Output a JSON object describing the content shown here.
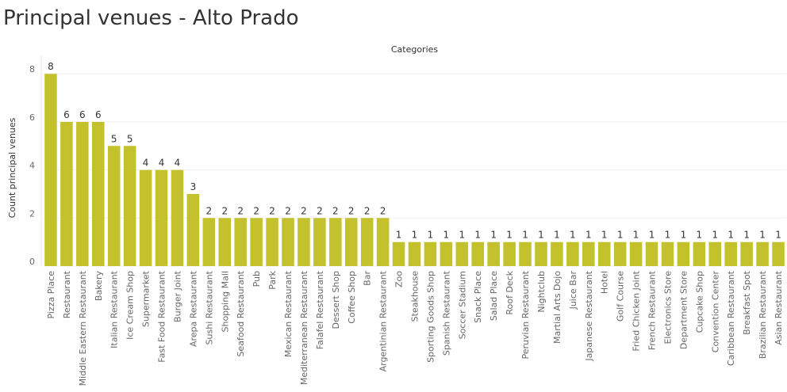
{
  "page": {
    "title": "Principal venues - Alto Prado"
  },
  "colors": {
    "bar": "#c4c22c",
    "grid": "#f0f0f0",
    "axis_text": "#666666"
  },
  "chart_data": {
    "type": "bar",
    "title": "Principal venues - Alto Prado",
    "header": "Categories",
    "xlabel": "",
    "ylabel": "Count principal venues",
    "ylim": [
      0,
      8.7
    ],
    "yticks": [
      0,
      2,
      4,
      6,
      8
    ],
    "grid": true,
    "categories": [
      "Pizza Place",
      "Restaurant",
      "Middle Eastern Restaurant",
      "Bakery",
      "Italian Restaurant",
      "Ice Cream Shop",
      "Supermarket",
      "Fast Food Restaurant",
      "Burger Joint",
      "Arepa Restaurant",
      "Sushi Restaurant",
      "Shopping Mall",
      "Seafood Restaurant",
      "Pub",
      "Park",
      "Mexican Restaurant",
      "Mediterranean Restaurant",
      "Falafel Restaurant",
      "Dessert Shop",
      "Coffee Shop",
      "Bar",
      "Argentinian Restaurant",
      "Zoo",
      "Steakhouse",
      "Sporting Goods Shop",
      "Spanish Restaurant",
      "Soccer Stadium",
      "Snack Place",
      "Salad Place",
      "Roof Deck",
      "Peruvian Restaurant",
      "Nightclub",
      "Martial Arts Dojo",
      "Juice Bar",
      "Japanese Restaurant",
      "Hotel",
      "Golf Course",
      "Fried Chicken Joint",
      "French Restaurant",
      "Electronics Store",
      "Department Store",
      "Cupcake Shop",
      "Convention Center",
      "Caribbean Restaurant",
      "Breakfast Spot",
      "Brazilian Restaurant",
      "Asian Restaurant"
    ],
    "values": [
      8,
      6,
      6,
      6,
      5,
      5,
      4,
      4,
      4,
      3,
      2,
      2,
      2,
      2,
      2,
      2,
      2,
      2,
      2,
      2,
      2,
      2,
      1,
      1,
      1,
      1,
      1,
      1,
      1,
      1,
      1,
      1,
      1,
      1,
      1,
      1,
      1,
      1,
      1,
      1,
      1,
      1,
      1,
      1,
      1,
      1,
      1
    ]
  }
}
